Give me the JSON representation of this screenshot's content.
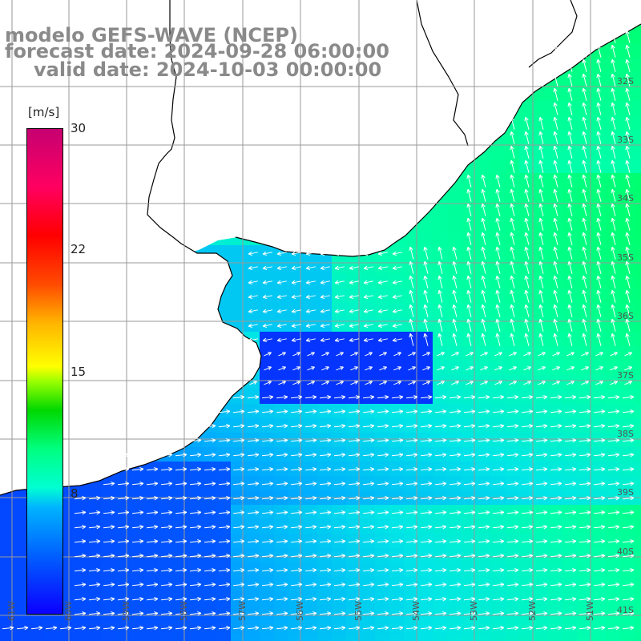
{
  "title": {
    "line1": "modelo GEFS-WAVE (NCEP)",
    "line2": "forecast date: 2024-09-28 06:00:00",
    "line3": "valid date: 2024-10-03 00:00:00"
  },
  "colorbar": {
    "unit": "[m/s]",
    "ticks": [
      "30",
      "22",
      "15",
      "8"
    ],
    "tick_values": [
      30,
      22,
      15,
      8
    ],
    "range": [
      0,
      30
    ],
    "colors": [
      "#0b00ff",
      "#0060ff",
      "#00b4ff",
      "#00ffd2",
      "#00ff80",
      "#00d800",
      "#9cff00",
      "#ffff00",
      "#ffb400",
      "#ff4a00",
      "#ff0000",
      "#ff0060",
      "#c60072"
    ]
  },
  "map": {
    "lat_labels": [
      "32S",
      "33S",
      "34S",
      "35S",
      "36S",
      "37S",
      "38S",
      "39S",
      "40S",
      "41S"
    ],
    "lon_labels": [
      "61W",
      "60W",
      "59W",
      "58W",
      "57W",
      "56W",
      "55W",
      "54W",
      "53W",
      "52W",
      "51W"
    ],
    "grid": true,
    "land_color": "#ffffff",
    "coast_color": "#000000",
    "grid_color": "#9a9a9a"
  }
}
